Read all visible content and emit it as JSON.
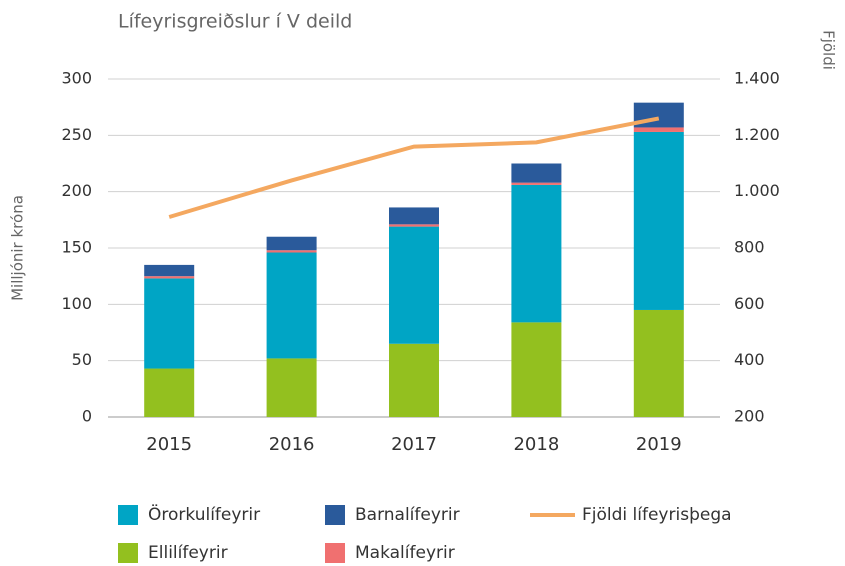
{
  "chart_data": {
    "type": "bar",
    "title": "Lífeyrisgreiðslur í V deild",
    "y_label": "Milljónir króna",
    "y2_label": "Fjöldi",
    "stacked": true,
    "categories": [
      "2015",
      "2016",
      "2017",
      "2018",
      "2019"
    ],
    "series": [
      {
        "name": "Ellilífeyrir",
        "color": "#93c01f",
        "values": [
          43,
          52,
          65,
          84,
          95
        ]
      },
      {
        "name": "Örorkulífeyrir",
        "color": "#00a5c5",
        "values": [
          80,
          94,
          104,
          122,
          158
        ]
      },
      {
        "name": "Makalífeyrir",
        "color": "#f07070",
        "values": [
          2,
          2,
          2,
          2,
          4
        ]
      },
      {
        "name": "Barnalífeyrir",
        "color": "#2a5a9b",
        "values": [
          10,
          12,
          15,
          17,
          22
        ]
      },
      {
        "name": "Fjöldi lífeyrisþega",
        "color": "#f4a860",
        "type": "line",
        "axis": "y2",
        "values": [
          910,
          1040,
          1160,
          1175,
          1260
        ]
      }
    ],
    "ylim": [
      0,
      300
    ],
    "yticks": [
      0,
      50,
      100,
      150,
      200,
      250,
      300
    ],
    "y2lim": [
      200,
      1400
    ],
    "y2ticks": [
      200,
      400,
      600,
      800,
      {
        "value": 1000,
        "label": "1.000"
      },
      {
        "value": 1200,
        "label": "1.200"
      },
      {
        "value": 1400,
        "label": "1.400"
      }
    ],
    "grid": true,
    "legend": "bottom"
  }
}
